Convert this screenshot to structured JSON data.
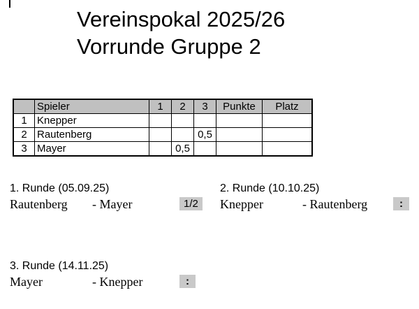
{
  "title": {
    "line1": "Vereinspokal 2025/26",
    "line2": "Vorrunde Gruppe 2"
  },
  "table": {
    "headers": [
      "",
      "Spieler",
      "1",
      "2",
      "3",
      "Punkte",
      "Platz"
    ],
    "rows": [
      {
        "num": "1",
        "name": "Knepper",
        "r1": "",
        "r2": "",
        "r3": "",
        "punkte": "",
        "platz": ""
      },
      {
        "num": "2",
        "name": "Rautenberg",
        "r1": "",
        "r2": "",
        "r3": "0,5",
        "punkte": "",
        "platz": ""
      },
      {
        "num": "3",
        "name": "Mayer",
        "r1": "",
        "r2": "0,5",
        "r3": "",
        "punkte": "",
        "platz": ""
      }
    ]
  },
  "rounds": [
    {
      "heading": "1. Runde (05.09.25)",
      "home": "Rautenberg",
      "dash": "-",
      "away": "Mayer",
      "result": "1/2"
    },
    {
      "heading": "2. Runde (10.10.25)",
      "home": "Knepper",
      "dash": "-",
      "away": "Rautenberg",
      "result": ":"
    },
    {
      "heading": "3. Runde (14.11.25)",
      "home": "Mayer",
      "dash": "-",
      "away": "Knepper",
      "result": ":"
    }
  ],
  "colors": {
    "cell_gray": "#c0c0c0",
    "box_gray": "#c9c9c9",
    "border": "#000000"
  }
}
